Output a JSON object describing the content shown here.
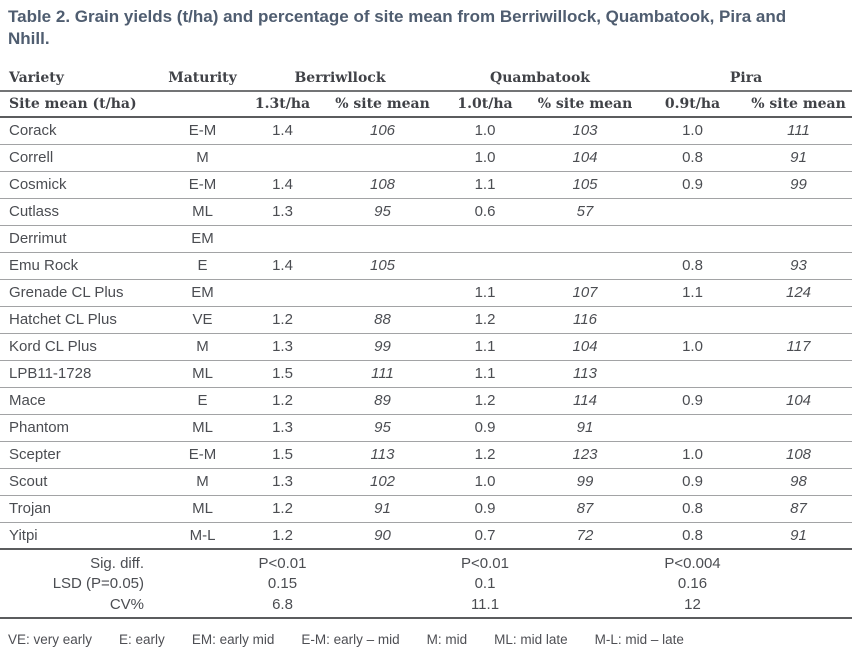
{
  "title": "Table 2. Grain yields (t/ha) and percentage of site mean from Berriwillock, Quambatook, Pira and Nhill.",
  "table": {
    "header": {
      "variety": "Variety",
      "maturity": "Maturity",
      "sites": [
        "Berriwllock",
        "Quambatook",
        "Pira"
      ]
    },
    "subheader": {
      "label": "Site mean (t/ha)",
      "cells": [
        "1.3t/ha",
        "% site mean",
        "1.0t/ha",
        "% site mean",
        "0.9t/ha",
        "% site mean"
      ]
    },
    "rows": [
      {
        "variety": "Corack",
        "maturity": "E-M",
        "values": [
          "1.4",
          "106",
          "1.0",
          "103",
          "1.0",
          "111"
        ]
      },
      {
        "variety": "Correll",
        "maturity": "M",
        "values": [
          "",
          "",
          "1.0",
          "104",
          "0.8",
          "91"
        ]
      },
      {
        "variety": "Cosmick",
        "maturity": "E-M",
        "values": [
          "1.4",
          "108",
          "1.1",
          "105",
          "0.9",
          "99"
        ]
      },
      {
        "variety": "Cutlass",
        "maturity": "ML",
        "values": [
          "1.3",
          "95",
          "0.6",
          "57",
          "",
          ""
        ]
      },
      {
        "variety": "Derrimut",
        "maturity": "EM",
        "values": [
          "",
          "",
          "",
          "",
          "",
          ""
        ]
      },
      {
        "variety": "Emu Rock",
        "maturity": "E",
        "values": [
          "1.4",
          "105",
          "",
          "",
          "0.8",
          "93"
        ]
      },
      {
        "variety": "Grenade CL Plus",
        "maturity": "EM",
        "values": [
          "",
          "",
          "1.1",
          "107",
          "1.1",
          "124"
        ]
      },
      {
        "variety": "Hatchet CL Plus",
        "maturity": "VE",
        "values": [
          "1.2",
          "88",
          "1.2",
          "116",
          "",
          ""
        ]
      },
      {
        "variety": "Kord CL Plus",
        "maturity": "M",
        "values": [
          "1.3",
          "99",
          "1.1",
          "104",
          "1.0",
          "117"
        ]
      },
      {
        "variety": "LPB11-1728",
        "maturity": "ML",
        "values": [
          "1.5",
          "111",
          "1.1",
          "113",
          "",
          ""
        ]
      },
      {
        "variety": "Mace",
        "maturity": "E",
        "values": [
          "1.2",
          "89",
          "1.2",
          "114",
          "0.9",
          "104"
        ]
      },
      {
        "variety": "Phantom",
        "maturity": "ML",
        "values": [
          "1.3",
          "95",
          "0.9",
          "91",
          "",
          ""
        ]
      },
      {
        "variety": "Scepter",
        "maturity": "E-M",
        "values": [
          "1.5",
          "113",
          "1.2",
          "123",
          "1.0",
          "108"
        ]
      },
      {
        "variety": "Scout",
        "maturity": "M",
        "values": [
          "1.3",
          "102",
          "1.0",
          "99",
          "0.9",
          "98"
        ]
      },
      {
        "variety": "Trojan",
        "maturity": "ML",
        "values": [
          "1.2",
          "91",
          "0.9",
          "87",
          "0.8",
          "87"
        ]
      },
      {
        "variety": "Yitpi",
        "maturity": "M-L",
        "values": [
          "1.2",
          "90",
          "0.7",
          "72",
          "0.8",
          "91"
        ]
      }
    ],
    "stats": [
      {
        "label": "Sig. diff.",
        "values": [
          "P<0.01",
          "P<0.01",
          "P<0.004"
        ]
      },
      {
        "label": "LSD (P=0.05)",
        "values": [
          "0.15",
          "0.1",
          "0.16"
        ]
      },
      {
        "label": "CV%",
        "values": [
          "6.8",
          "11.1",
          "12"
        ]
      }
    ]
  },
  "legend_items": [
    "VE: very early",
    "E: early",
    "EM: early mid",
    "E-M: early – mid",
    "M: mid",
    "ML: mid late",
    "M-L: mid – late"
  ],
  "colors": {
    "title_text": "#4f5d70",
    "header_text": "#404247",
    "body_text": "#4b4d52",
    "thin_rule": "#a2a3a5",
    "thick_rule": "#5b5c5e",
    "background": "#ffffff"
  }
}
